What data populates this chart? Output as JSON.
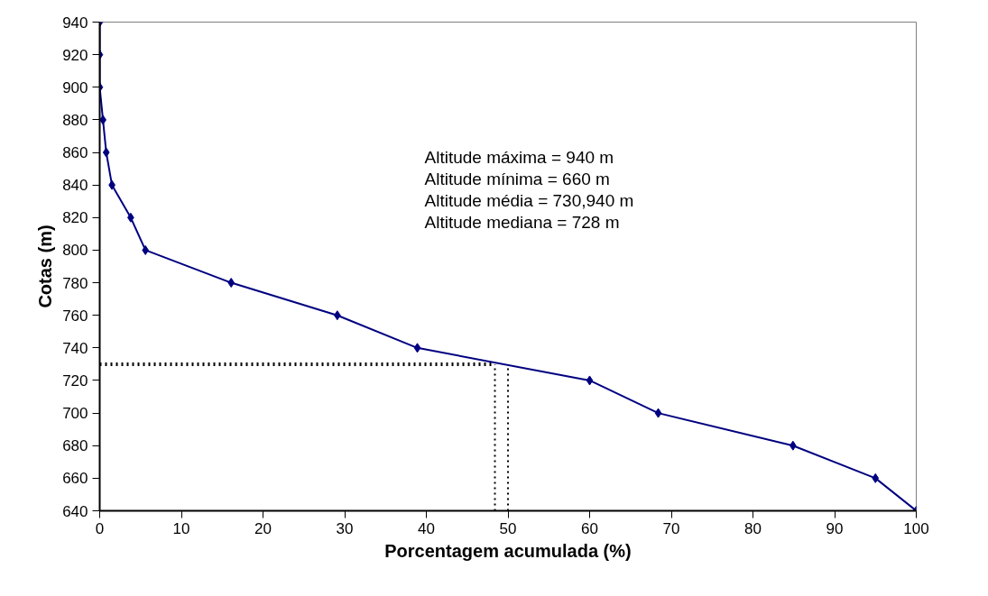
{
  "chart_data": {
    "type": "line",
    "xlabel": "Porcentagem acumulada (%)",
    "ylabel": "Cotas (m)",
    "annotations": [
      "Altitude máxima = 940 m",
      "Altitude mínima = 660 m",
      "Altitude média = 730,940 m",
      "Altitude mediana = 728 m"
    ],
    "xlim": [
      0,
      100
    ],
    "xticks": [
      0,
      10,
      20,
      30,
      40,
      50,
      60,
      70,
      80,
      90,
      100
    ],
    "ylim": [
      640,
      940
    ],
    "yticks": [
      640,
      660,
      680,
      700,
      720,
      740,
      760,
      780,
      800,
      820,
      840,
      860,
      880,
      900,
      920,
      940
    ],
    "series": [
      {
        "color": "#000080",
        "marker": "diamond",
        "line_style": "solid",
        "x": [
          0,
          0,
          0,
          0.4,
          0.8,
          1.5,
          3.8,
          5.6,
          16.1,
          29.1,
          38.9,
          60.0,
          68.4,
          84.9,
          95.0,
          100
        ],
        "values": [
          940,
          920,
          900,
          880,
          860,
          840,
          820,
          800,
          780,
          760,
          740,
          720,
          700,
          680,
          660,
          640
        ]
      },
      {
        "color": "#000000",
        "marker": "none",
        "line_style": "dotted",
        "x": [
          0,
          48.4
        ],
        "values": [
          730,
          730
        ]
      },
      {
        "color": "#000000",
        "marker": "none",
        "line_style": "dotted",
        "x": [
          48.4,
          48.4
        ],
        "values": [
          640,
          730
        ]
      },
      {
        "color": "#000000",
        "marker": "none",
        "line_style": "dotted",
        "x": [
          50,
          50
        ],
        "values": [
          640,
          729
        ]
      }
    ]
  }
}
